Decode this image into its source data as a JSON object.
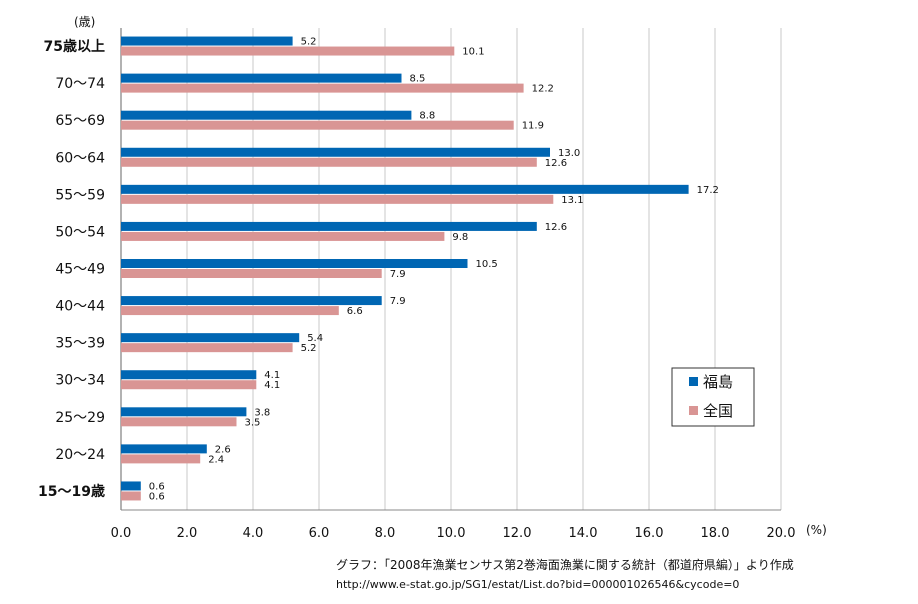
{
  "chart_data": {
    "type": "bar",
    "orientation": "horizontal",
    "title": "",
    "y_unit": "(歳)",
    "x_unit": "(%)",
    "categories": [
      "75歳以上",
      "70～74",
      "65～69",
      "60～64",
      "55～59",
      "50～54",
      "45～49",
      "40～44",
      "35～39",
      "30～34",
      "25～29",
      "20～24",
      "15～19歳"
    ],
    "series": [
      {
        "name": "福島",
        "color": "#0066b3",
        "values": [
          5.2,
          8.5,
          8.8,
          13.0,
          17.2,
          12.6,
          10.5,
          7.9,
          5.4,
          4.1,
          3.8,
          2.6,
          0.6
        ],
        "labels": [
          "5.2",
          "8.5",
          "8.8",
          "13.0",
          "17.2",
          "12.6",
          "10.5",
          "7.9",
          "5.4",
          "4.1",
          "3.8",
          "2.6",
          "0.6"
        ]
      },
      {
        "name": "全国",
        "color": "#d99594",
        "values": [
          10.1,
          12.2,
          11.9,
          12.6,
          13.1,
          9.8,
          7.9,
          6.6,
          5.2,
          4.1,
          3.5,
          2.4,
          0.6
        ],
        "labels": [
          "10.1",
          "12.2",
          "11.9",
          "12.6",
          "13.1",
          "9.8",
          "7.9",
          "6.6",
          "5.2",
          "4.1",
          "3.5",
          "2.4",
          "0.6"
        ]
      }
    ],
    "xlim": [
      0,
      20
    ],
    "x_ticks": [
      "0.0",
      "2.0",
      "4.0",
      "6.0",
      "8.0",
      "10.0",
      "12.0",
      "14.0",
      "16.0",
      "18.0",
      "20.0"
    ],
    "grid": true,
    "legend": "bottom-right"
  },
  "source": {
    "line1": "グラフ：「2008年漁業センサス第2巻海面漁業に関する統計（都道府県編）」より作成",
    "line2": "http://www.e-stat.go.jp/SG1/estat/List.do?bid=000001026546&cycode=0"
  }
}
